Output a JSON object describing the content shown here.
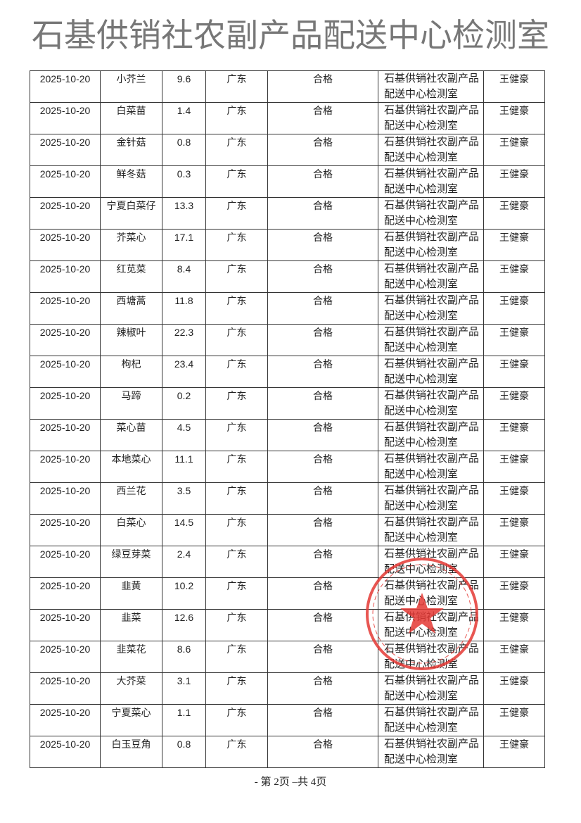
{
  "rows": [
    [
      "2025-10-20",
      "小芥兰",
      "9.6",
      "广东",
      "合格",
      "石基供销社农副产品配送中心检测室",
      "王健豪"
    ],
    [
      "2025-10-20",
      "白菜苗",
      "1.4",
      "广东",
      "合格",
      "石基供销社农副产品配送中心检测室",
      "王健豪"
    ],
    [
      "2025-10-20",
      "金针菇",
      "0.8",
      "广东",
      "合格",
      "石基供销社农副产品配送中心检测室",
      "王健豪"
    ],
    [
      "2025-10-20",
      "鲜冬菇",
      "0.3",
      "广东",
      "合格",
      "石基供销社农副产品配送中心检测室",
      "王健豪"
    ],
    [
      "2025-10-20",
      "宁夏白菜仔",
      "13.3",
      "广东",
      "合格",
      "石基供销社农副产品配送中心检测室",
      "王健豪"
    ],
    [
      "2025-10-20",
      "芥菜心",
      "17.1",
      "广东",
      "合格",
      "石基供销社农副产品配送中心检测室",
      "王健豪"
    ],
    [
      "2025-10-20",
      "红苋菜",
      "8.4",
      "广东",
      "合格",
      "石基供销社农副产品配送中心检测室",
      "王健豪"
    ],
    [
      "2025-10-20",
      "西塘蒿",
      "11.8",
      "广东",
      "合格",
      "石基供销社农副产品配送中心检测室",
      "王健豪"
    ],
    [
      "2025-10-20",
      "辣椒叶",
      "22.3",
      "广东",
      "合格",
      "石基供销社农副产品配送中心检测室",
      "王健豪"
    ],
    [
      "2025-10-20",
      "枸杞",
      "23.4",
      "广东",
      "合格",
      "石基供销社农副产品配送中心检测室",
      "王健豪"
    ],
    [
      "2025-10-20",
      "马蹄",
      "0.2",
      "广东",
      "合格",
      "石基供销社农副产品配送中心检测室",
      "王健豪"
    ],
    [
      "2025-10-20",
      "菜心苗",
      "4.5",
      "广东",
      "合格",
      "石基供销社农副产品配送中心检测室",
      "王健豪"
    ],
    [
      "2025-10-20",
      "本地菜心",
      "11.1",
      "广东",
      "合格",
      "石基供销社农副产品配送中心检测室",
      "王健豪"
    ],
    [
      "2025-10-20",
      "西兰花",
      "3.5",
      "广东",
      "合格",
      "石基供销社农副产品配送中心检测室",
      "王健豪"
    ],
    [
      "2025-10-20",
      "白菜心",
      "14.5",
      "广东",
      "合格",
      "石基供销社农副产品配送中心检测室",
      "王健豪"
    ],
    [
      "2025-10-20",
      "绿豆芽菜",
      "2.4",
      "广东",
      "合格",
      "石基供销社农副产品配送中心检测室",
      "王健豪"
    ],
    [
      "2025-10-20",
      "韭黄",
      "10.2",
      "广东",
      "合格",
      "石基供销社农副产品配送中心检测室",
      "王健豪"
    ],
    [
      "2025-10-20",
      "韭菜",
      "12.6",
      "广东",
      "合格",
      "石基供销社农副产品配送中心检测室",
      "王健豪"
    ],
    [
      "2025-10-20",
      "韭菜花",
      "8.6",
      "广东",
      "合格",
      "石基供销社农副产品配送中心检测室",
      "王健豪"
    ],
    [
      "2025-10-20",
      "大芥菜",
      "3.1",
      "广东",
      "合格",
      "石基供销社农副产品配送中心检测室",
      "王健豪"
    ],
    [
      "2025-10-20",
      "宁夏菜心",
      "1.1",
      "广东",
      "合格",
      "石基供销社农副产品配送中心检测室",
      "王健豪"
    ],
    [
      "2025-10-20",
      "白玉豆角",
      "0.8",
      "广东",
      "合格",
      "石基供销社农副产品配送中心检测室",
      "王健豪"
    ]
  ],
  "watermark": "石基供销社农副产品配送中心检测室",
  "stamp_text": "石基供销社农副产品配送中心",
  "stamp_color": "#e53935",
  "footer": "- 第 2页 –共 4页"
}
